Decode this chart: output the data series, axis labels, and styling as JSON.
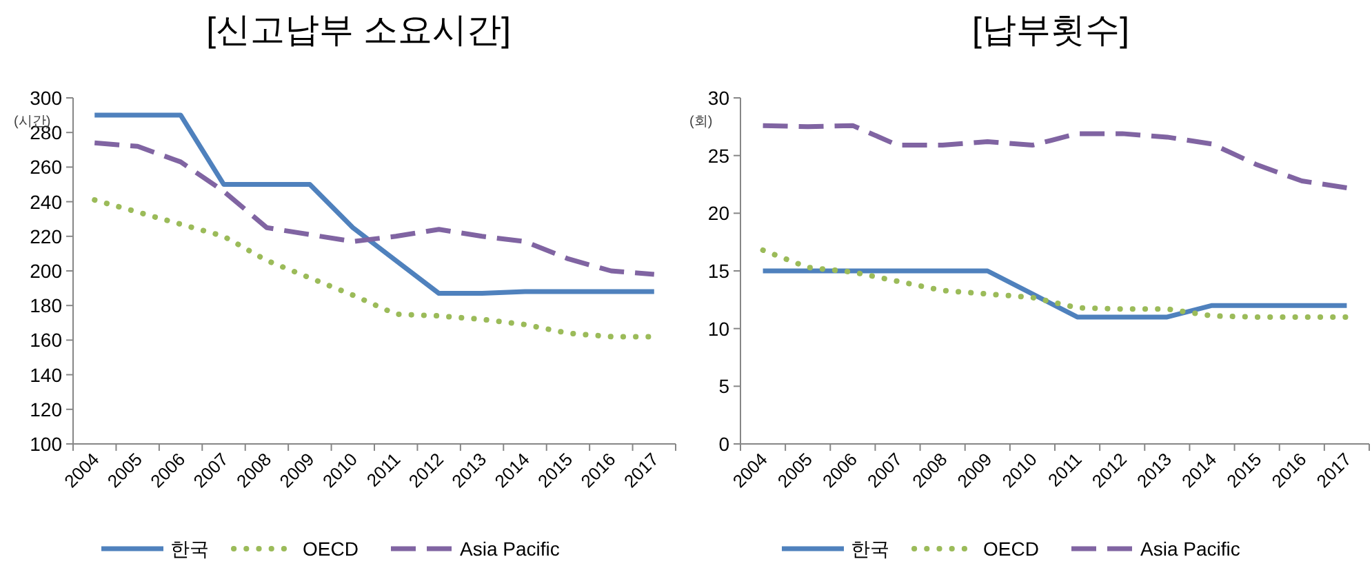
{
  "chart_data": [
    {
      "type": "line",
      "title": "[신고납부 소요시간]",
      "annotations": [
        "(시간)"
      ],
      "categories": [
        "2004",
        "2005",
        "2006",
        "2007",
        "2008",
        "2009",
        "2010",
        "2011",
        "2012",
        "2013",
        "2014",
        "2015",
        "2016",
        "2017"
      ],
      "ylim": [
        100,
        300
      ],
      "yticks": [
        100,
        120,
        140,
        160,
        180,
        200,
        220,
        240,
        260,
        280,
        300
      ],
      "grid": false,
      "legend": "bottom",
      "marker": "none",
      "series": [
        {
          "name": "한국",
          "color": "#4f81bd",
          "line_style": "solid",
          "values": [
            290,
            290,
            290,
            250,
            250,
            250,
            225,
            206,
            187,
            187,
            188,
            188,
            188,
            188
          ]
        },
        {
          "name": "OECD",
          "color": "#9bbb59",
          "line_style": "dotted",
          "values": [
            241,
            234,
            227,
            220,
            206,
            196,
            186,
            175,
            174,
            172,
            169,
            164,
            162,
            162
          ]
        },
        {
          "name": "Asia Pacific",
          "color": "#8064a2",
          "line_style": "dashed",
          "values": [
            274,
            272,
            263,
            246,
            225,
            221,
            217,
            220,
            224,
            220,
            217,
            207,
            200,
            198
          ]
        }
      ]
    },
    {
      "type": "line",
      "title": "[납부횟수]",
      "annotations": [
        "(회)"
      ],
      "categories": [
        "2004",
        "2005",
        "2006",
        "2007",
        "2008",
        "2009",
        "2010",
        "2011",
        "2012",
        "2013",
        "2014",
        "2015",
        "2016",
        "2017"
      ],
      "ylim": [
        0,
        30
      ],
      "yticks": [
        0,
        5,
        10,
        15,
        20,
        25,
        30
      ],
      "grid": false,
      "legend": "bottom",
      "marker": "none",
      "series": [
        {
          "name": "한국",
          "color": "#4f81bd",
          "line_style": "solid",
          "values": [
            15,
            15,
            15,
            15,
            15,
            15,
            13,
            11,
            11,
            11,
            12,
            12,
            12,
            12
          ]
        },
        {
          "name": "OECD",
          "color": "#9bbb59",
          "line_style": "dotted",
          "values": [
            16.8,
            15.3,
            14.9,
            14.1,
            13.3,
            13.0,
            12.7,
            11.8,
            11.7,
            11.7,
            11.1,
            11.0,
            11.0,
            11.0
          ]
        },
        {
          "name": "Asia Pacific",
          "color": "#8064a2",
          "line_style": "dashed",
          "values": [
            27.6,
            27.5,
            27.6,
            25.9,
            25.9,
            26.2,
            25.9,
            26.9,
            26.9,
            26.6,
            26.0,
            24.2,
            22.8,
            22.2
          ]
        }
      ]
    }
  ]
}
